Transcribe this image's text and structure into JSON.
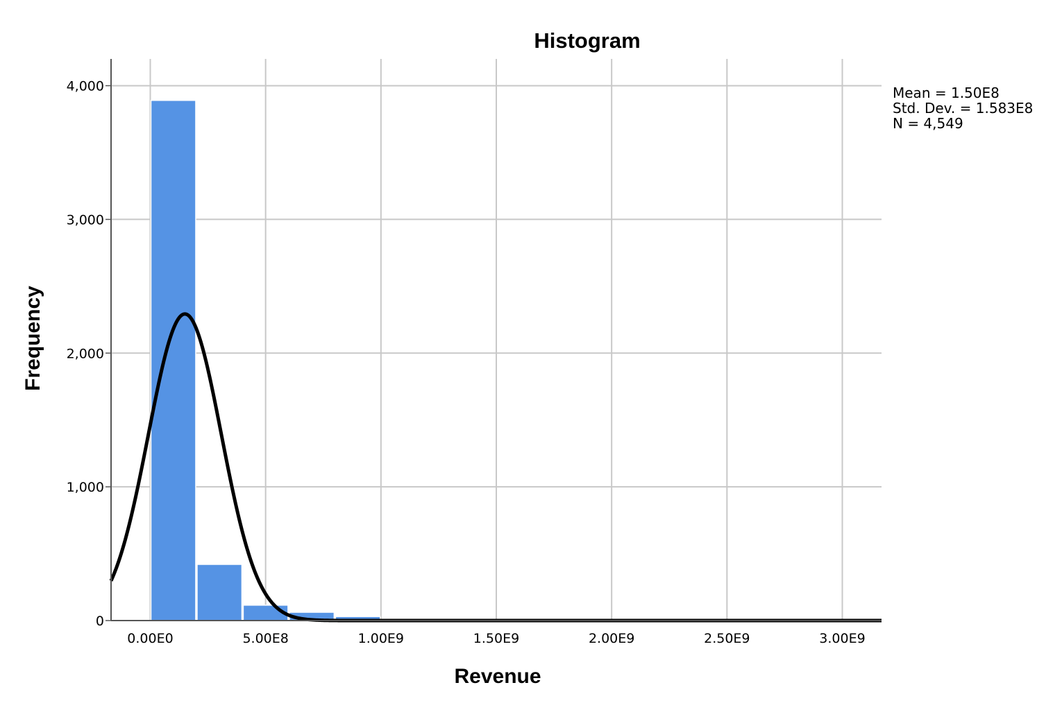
{
  "chart_data": {
    "type": "bar",
    "title": "Histogram",
    "xlabel": "Revenue",
    "ylabel": "Frequency",
    "xlim": [
      -170000000,
      3170000000
    ],
    "ylim": [
      0,
      4200
    ],
    "x_ticks": [
      {
        "value": 0,
        "label": "0.00E0"
      },
      {
        "value": 500000000,
        "label": "5.00E8"
      },
      {
        "value": 1000000000,
        "label": "1.00E9"
      },
      {
        "value": 1500000000,
        "label": "1.50E9"
      },
      {
        "value": 2000000000,
        "label": "2.00E9"
      },
      {
        "value": 2500000000,
        "label": "2.50E9"
      },
      {
        "value": 3000000000,
        "label": "3.00E9"
      }
    ],
    "y_ticks": [
      {
        "value": 0,
        "label": "0"
      },
      {
        "value": 1000,
        "label": "1,000"
      },
      {
        "value": 2000,
        "label": "2,000"
      },
      {
        "value": 3000,
        "label": "3,000"
      },
      {
        "value": 4000,
        "label": "4,000"
      }
    ],
    "bin_width": 200000000,
    "bins": [
      {
        "start": 0,
        "count": 3890
      },
      {
        "start": 200000000,
        "count": 420
      },
      {
        "start": 400000000,
        "count": 115
      },
      {
        "start": 600000000,
        "count": 62
      },
      {
        "start": 800000000,
        "count": 30
      },
      {
        "start": 1000000000,
        "count": 10
      },
      {
        "start": 1200000000,
        "count": 6
      },
      {
        "start": 1400000000,
        "count": 4
      },
      {
        "start": 1600000000,
        "count": 3
      },
      {
        "start": 1800000000,
        "count": 2
      },
      {
        "start": 2000000000,
        "count": 2
      },
      {
        "start": 2200000000,
        "count": 1
      },
      {
        "start": 2400000000,
        "count": 1
      },
      {
        "start": 2600000000,
        "count": 1
      },
      {
        "start": 2800000000,
        "count": 1
      }
    ],
    "normal_curve": {
      "mean": 150000000,
      "std_dev": 158300000,
      "n": 4549
    },
    "grid": true,
    "bar_color": "#5593e4",
    "curve_color": "#000000",
    "stats": {
      "mean": "Mean = 1.50E8",
      "std_dev": "Std. Dev. = 1.583E8",
      "n": "N = 4,549"
    }
  }
}
